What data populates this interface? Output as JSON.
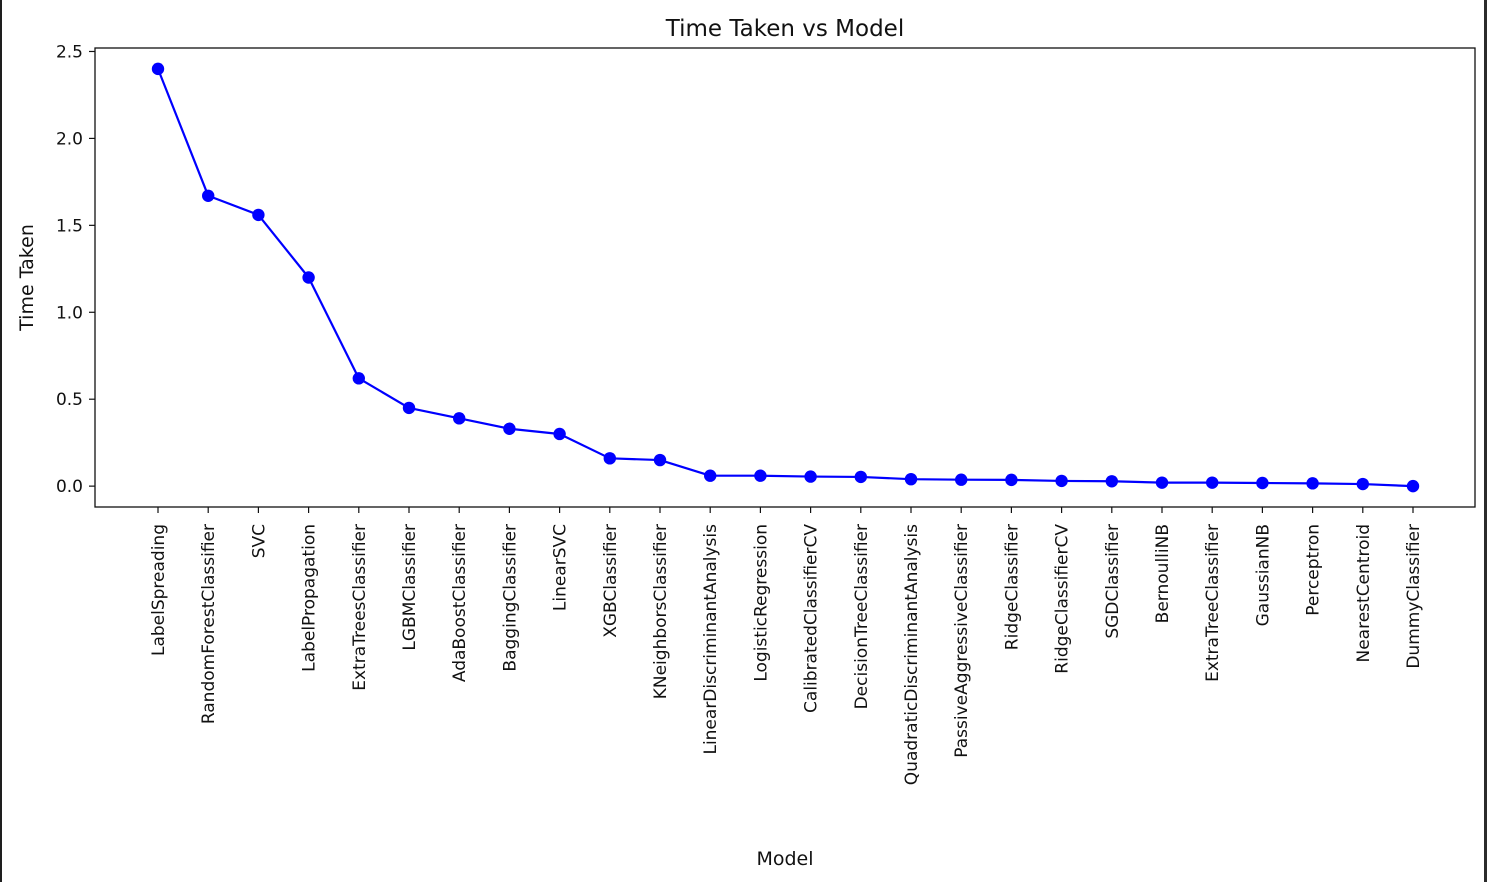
{
  "chart_data": {
    "type": "line",
    "title": "Time Taken vs Model",
    "xlabel": "Model",
    "ylabel": "Time Taken",
    "ylim": [
      -0.12,
      2.52
    ],
    "yticks": [
      "0.0",
      "0.5",
      "1.0",
      "1.5",
      "2.0",
      "2.5"
    ],
    "grid": false,
    "marker": "circle",
    "color": "#0000ff",
    "categories": [
      "LabelSpreading",
      "RandomForestClassifier",
      "SVC",
      "LabelPropagation",
      "ExtraTreesClassifier",
      "LGBMClassifier",
      "AdaBoostClassifier",
      "BaggingClassifier",
      "LinearSVC",
      "XGBClassifier",
      "KNeighborsClassifier",
      "LinearDiscriminantAnalysis",
      "LogisticRegression",
      "CalibratedClassifierCV",
      "DecisionTreeClassifier",
      "QuadraticDiscriminantAnalysis",
      "PassiveAggressiveClassifier",
      "RidgeClassifier",
      "RidgeClassifierCV",
      "SGDClassifier",
      "BernoulliNB",
      "ExtraTreeClassifier",
      "GaussianNB",
      "Perceptron",
      "NearestCentroid",
      "DummyClassifier"
    ],
    "values": [
      2.4,
      1.67,
      1.56,
      1.2,
      0.62,
      0.45,
      0.39,
      0.33,
      0.3,
      0.16,
      0.15,
      0.06,
      0.06,
      0.055,
      0.053,
      0.04,
      0.037,
      0.036,
      0.03,
      0.028,
      0.02,
      0.02,
      0.018,
      0.016,
      0.012,
      0.0
    ]
  }
}
